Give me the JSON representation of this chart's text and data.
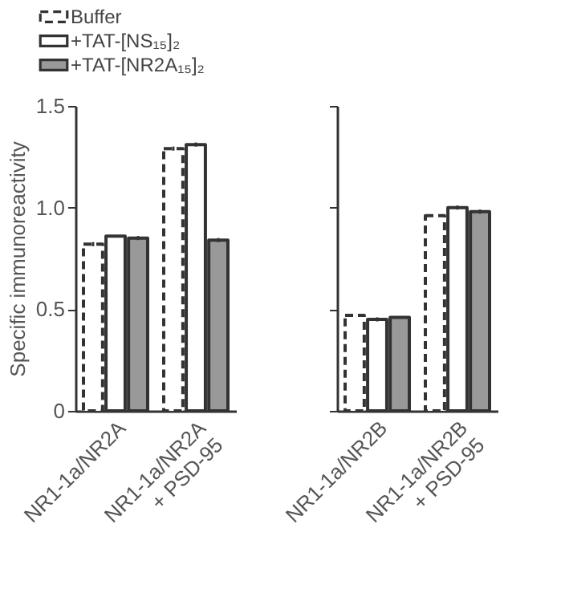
{
  "chart_data": [
    {
      "type": "bar",
      "ylabel": "Specific immunoreactivity",
      "categories": [
        "NR1-1a/NR2A",
        "NR1-1a/NR2A\n+ PSD-95"
      ],
      "ylim": [
        0,
        1.5
      ],
      "yticks": [
        0,
        0.5,
        {
          "value": 1,
          "label": "1.0"
        },
        1.5
      ],
      "legend": "top",
      "series": [
        {
          "name": "Buffer",
          "color": "#ffffff",
          "line_style": "dashed",
          "values": [
            0.82,
            1.29
          ],
          "errors": [
            0.01,
            0.01
          ]
        },
        {
          "name": "+TAT-[NS₁₅]₂",
          "color": "#ffffff",
          "line_style": "solid",
          "values": [
            0.86,
            1.31
          ],
          "errors": [
            null,
            0.01
          ]
        },
        {
          "name": "+TAT-[NR2A₁₅]₂",
          "color": "#999999",
          "line_style": "solid",
          "values": [
            0.85,
            0.84
          ],
          "errors": [
            0.01,
            0.01
          ]
        }
      ]
    },
    {
      "type": "bar",
      "categories": [
        "NR1-1a/NR2B",
        "NR1-1a/NR2B\n+ PSD-95"
      ],
      "ylim": [
        0,
        1.5
      ],
      "yticks": [
        0,
        0.5,
        1,
        1.5
      ],
      "tick_labels": "x",
      "series": [
        {
          "color": "#ffffff",
          "line_style": "dashed",
          "values": [
            0.47,
            0.96
          ]
        },
        {
          "color": "#ffffff",
          "line_style": "solid",
          "values": [
            0.45,
            1.0
          ],
          "errors": [
            0.01,
            0.01
          ]
        },
        {
          "color": "#999999",
          "line_style": "solid",
          "values": [
            0.46,
            0.98
          ],
          "errors": [
            null,
            0.01
          ]
        }
      ]
    }
  ]
}
